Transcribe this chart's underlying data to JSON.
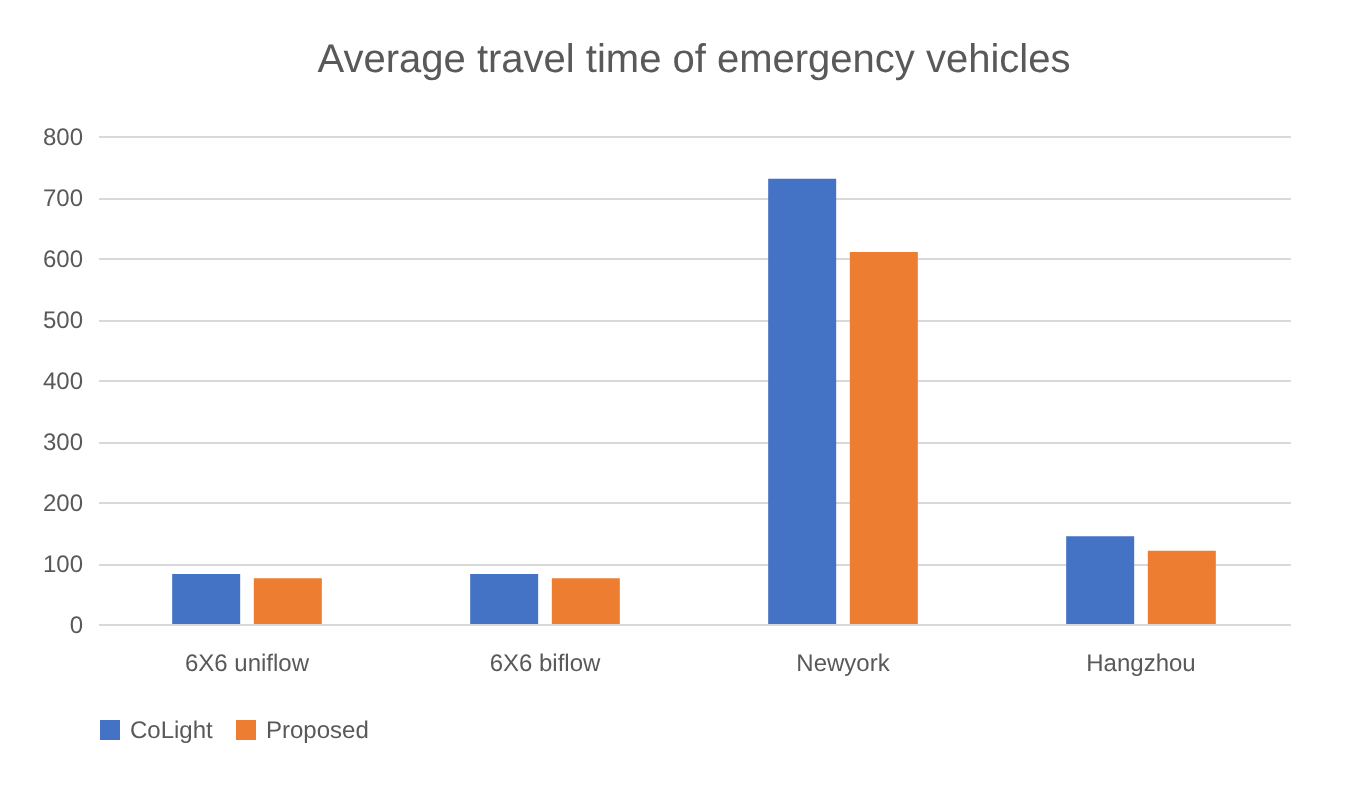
{
  "chart_data": {
    "type": "bar",
    "title": "Average travel time of emergency vehicles",
    "categories": [
      "6X6 uniflow",
      "6X6 biflow",
      "Newyork",
      "Hangzhou"
    ],
    "series": [
      {
        "name": "CoLight",
        "color": "#4472c4",
        "values": [
          82,
          82,
          730,
          144
        ]
      },
      {
        "name": "Proposed",
        "color": "#ed7d31",
        "values": [
          75,
          75,
          610,
          120
        ]
      }
    ],
    "ylim": [
      0,
      800
    ],
    "yticks": [
      0,
      100,
      200,
      300,
      400,
      500,
      600,
      700,
      800
    ],
    "grid": "y",
    "legend": "bottom"
  }
}
